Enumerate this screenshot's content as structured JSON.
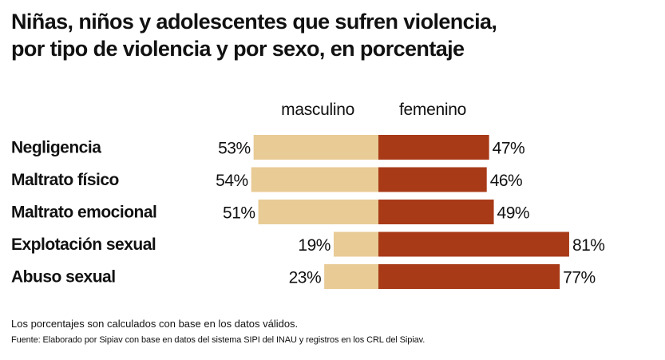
{
  "header": {
    "title_line1": "Niñas, niños y adolescentes que sufren violencia,",
    "title_line2": "por tipo de violencia y por sexo, en porcentaje"
  },
  "chart_data": {
    "type": "bar",
    "orientation": "horizontal-diverging",
    "title": "Niñas, niños y adolescentes que sufren violencia, por tipo de violencia y por sexo, en porcentaje",
    "categories": [
      "Negligencia",
      "Maltrato físico",
      "Maltrato emocional",
      "Explotación sexual",
      "Abuso sexual"
    ],
    "series": [
      {
        "name": "masculino",
        "color": "#e8cb95",
        "values": [
          53,
          54,
          51,
          19,
          23
        ],
        "labels": [
          "53%",
          "54%",
          "51%",
          "19%",
          "23%"
        ]
      },
      {
        "name": "femenino",
        "color": "#a83a17",
        "values": [
          47,
          46,
          49,
          81,
          77
        ],
        "labels": [
          "47%",
          "46%",
          "49%",
          "81%",
          "77%"
        ]
      }
    ],
    "unit": "%",
    "xlim": [
      0,
      100
    ],
    "grid": false,
    "legend": "top-center"
  },
  "footer": {
    "note": "Los porcentajes son calculados con base en los datos válidos.",
    "source": "Fuente: Elaborado por Sipiav con base en datos del sistema SIPI del INAU y registros  en los CRL del Sipiav."
  }
}
